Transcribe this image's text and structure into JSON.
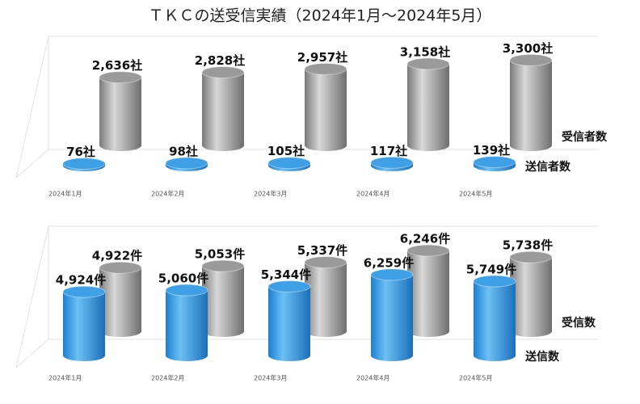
{
  "title": "ＴＫＣの送受信実績（2024年1月～2024年5月）",
  "chart_data": [
    {
      "type": "cylinder",
      "categories": [
        "2024年1月",
        "2024年2月",
        "2024年3月",
        "2024年4月",
        "2024年5月"
      ],
      "ylim": [
        0,
        3500
      ],
      "series": [
        {
          "name": "送信者数",
          "color": "#3fa0e6",
          "values": [
            76,
            98,
            105,
            117,
            139
          ],
          "value_labels": [
            "76社",
            "98社",
            "105社",
            "117社",
            "139社"
          ]
        },
        {
          "name": "受信者数",
          "color": "#9a9a9a",
          "values": [
            2636,
            2828,
            2957,
            3158,
            3300
          ],
          "value_labels": [
            "2,636社",
            "2,828社",
            "2,957社",
            "3,158社",
            "3,300社"
          ]
        }
      ]
    },
    {
      "type": "cylinder",
      "categories": [
        "2024年1月",
        "2024年2月",
        "2024年3月",
        "2024年4月",
        "2024年5月"
      ],
      "ylim": [
        0,
        7000
      ],
      "series": [
        {
          "name": "送信数",
          "color": "#3fa0e6",
          "values": [
            4924,
            5060,
            5344,
            6259,
            5749
          ],
          "value_labels": [
            "4,924件",
            "5,060件",
            "5,344件",
            "6,259件",
            "5,749件"
          ]
        },
        {
          "name": "受信数",
          "color": "#9a9a9a",
          "values": [
            4922,
            5053,
            5337,
            6246,
            5738
          ],
          "value_labels": [
            "4,922件",
            "5,053件",
            "5,337件",
            "6,246件",
            "5,738件"
          ]
        }
      ]
    }
  ]
}
